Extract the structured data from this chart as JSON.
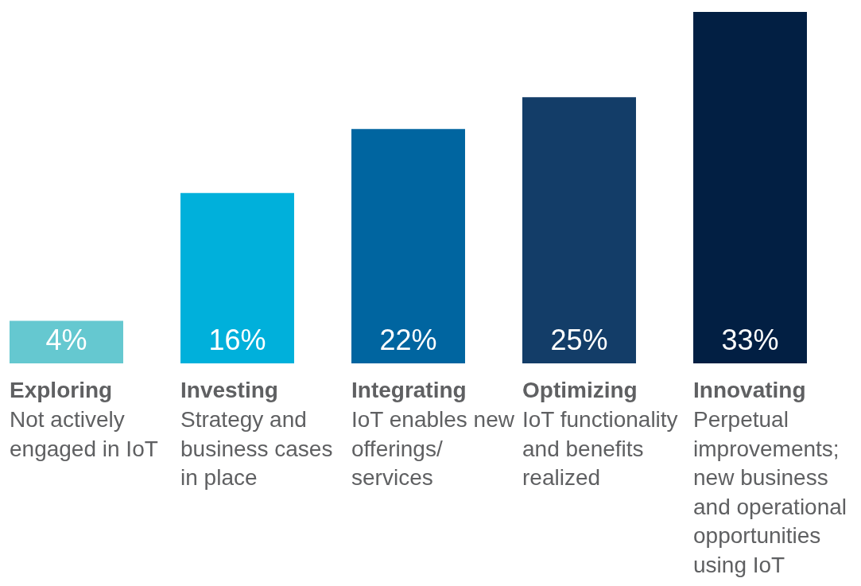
{
  "chart_data": {
    "type": "bar",
    "categories": [
      "Exploring",
      "Investing",
      "Integrating",
      "Optimizing",
      "Innovating"
    ],
    "values": [
      4,
      16,
      22,
      25,
      33
    ],
    "colors": [
      "#65c8d0",
      "#00b0db",
      "#0065a0",
      "#133d68",
      "#021f43"
    ],
    "data_labels": true,
    "value_labels": [
      "4%",
      "16%",
      "22%",
      "25%",
      "33%"
    ],
    "tick_labels": "x",
    "legend": false,
    "annotations": [
      "Not actively engaged in IoT",
      "Strategy and business cases in place",
      "IoT enables new offerings/ services",
      "IoT functionality and benefits realized",
      "Perpetual improvements; new business and operational opportunities using IoT"
    ]
  }
}
